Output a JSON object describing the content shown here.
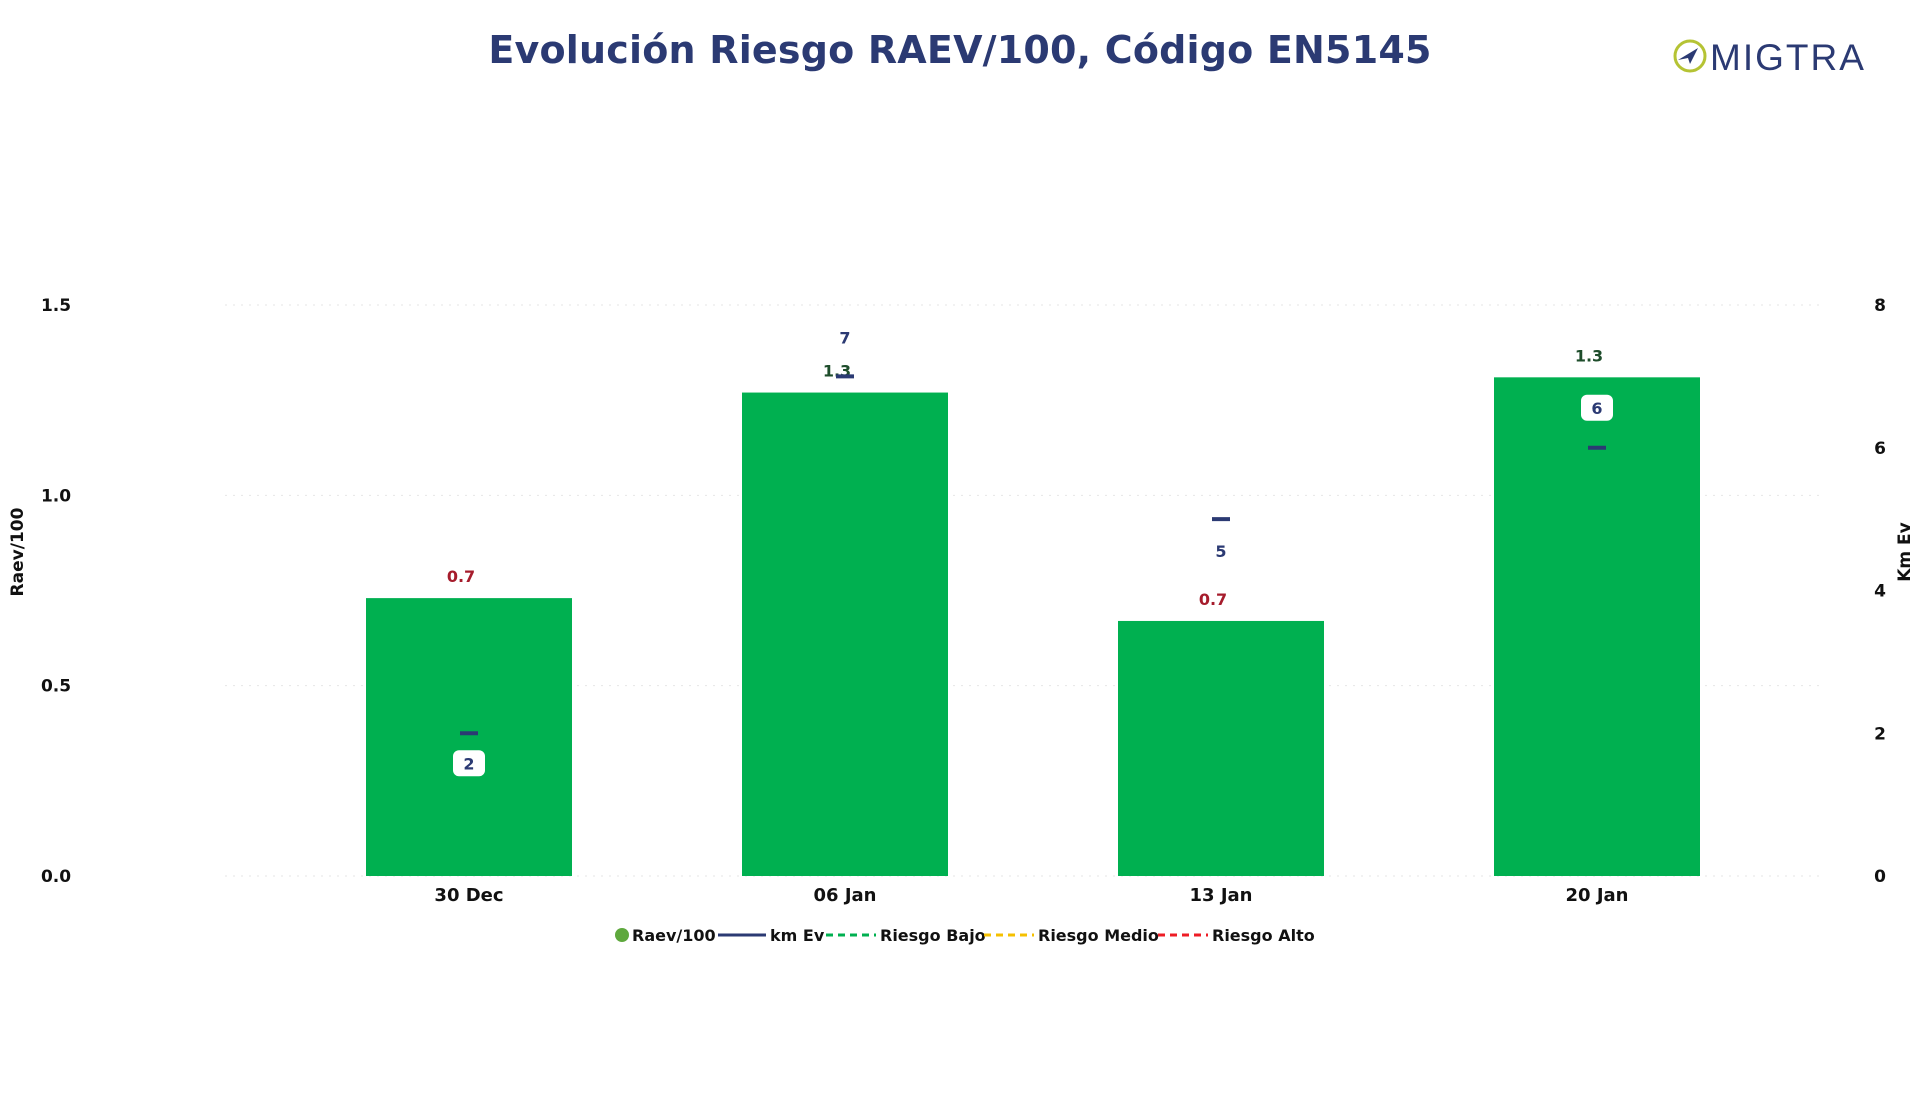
{
  "logo": {
    "text": "MIGTRA",
    "colors": {
      "ring": "#b5c334",
      "arrow": "#2b3a73",
      "letters": "#2b3a73",
      "accent": "#b5c334"
    }
  },
  "chart_data": {
    "type": "bar",
    "title": "Evolución Riesgo RAEV/100, Código EN5145",
    "categories": [
      "30 Dec",
      "06 Jan",
      "13 Jan",
      "20 Jan"
    ],
    "series": [
      {
        "name": "Raev/100",
        "type": "bar",
        "axis": "left",
        "values": [
          0.73,
          1.27,
          0.67,
          1.31
        ],
        "labels": [
          "0.7",
          "1.3",
          "0.7",
          "1.3"
        ],
        "label_colors": [
          "#a61c2c",
          "#1e4d2b",
          "#a61c2c",
          "#1e4d2b"
        ],
        "color": "#00b050"
      },
      {
        "name": "km Ev",
        "type": "line",
        "axis": "right",
        "values": [
          2,
          7,
          5,
          6
        ],
        "labels": [
          "2",
          "7",
          "5",
          "6"
        ],
        "label_boxed": [
          true,
          false,
          false,
          true
        ],
        "color": "#2b3a73"
      }
    ],
    "reference_lines": [
      {
        "name": "Riesgo Bajo",
        "color": "#00b050",
        "style": "dashed"
      },
      {
        "name": "Riesgo Medio",
        "color": "#f5c000",
        "style": "dashed"
      },
      {
        "name": "Riesgo Alto",
        "color": "#ee1c25",
        "style": "dashed"
      }
    ],
    "ylabel": "Raev/100",
    "y2label": "Km Ev",
    "ylim": [
      0,
      1.5
    ],
    "y2lim": [
      0,
      8
    ],
    "yticks": [
      "0.0",
      "0.5",
      "1.0",
      "1.5"
    ],
    "y2ticks": [
      "0",
      "2",
      "4",
      "6",
      "8"
    ],
    "grid": true,
    "legend_position": "bottom"
  }
}
